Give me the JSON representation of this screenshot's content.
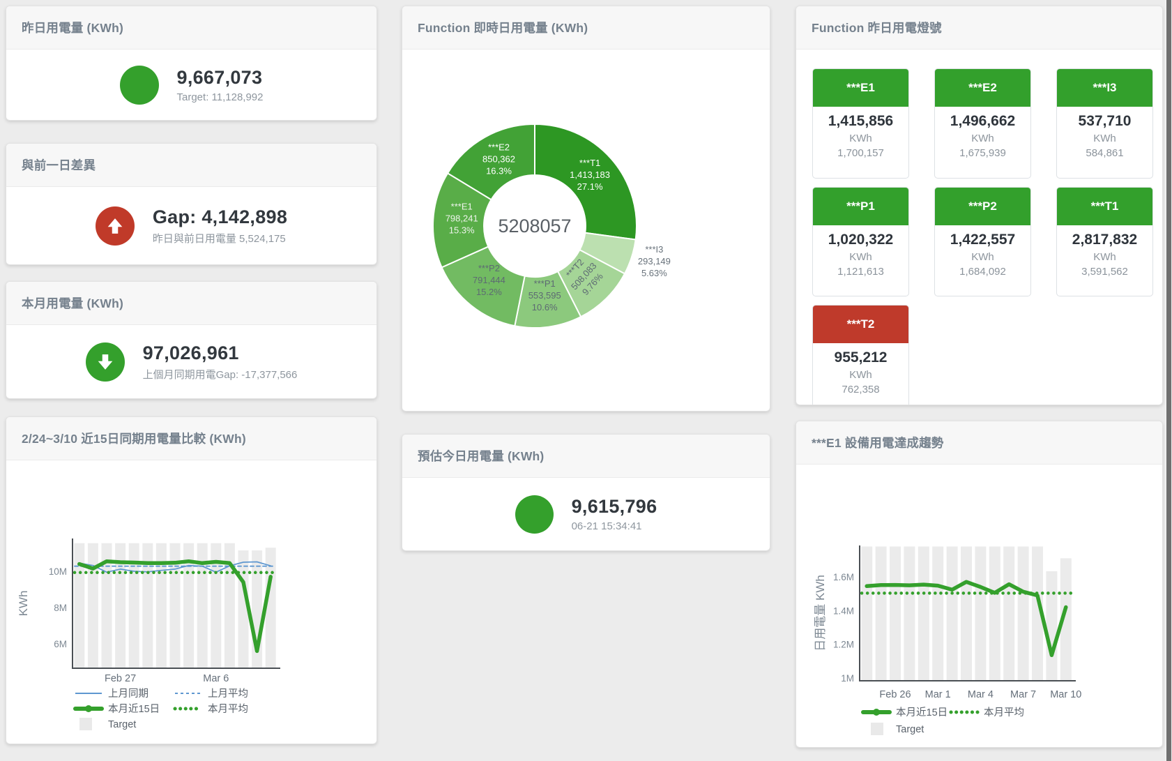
{
  "colors": {
    "green": "#34a02c",
    "red": "#c03a29",
    "blue": "#5e97d0",
    "tile_green": "#33a02c",
    "tile_red": "#bf3a2b",
    "target_bar": "#ebebeb"
  },
  "cards": {
    "yesterday": {
      "title": "昨日用電量 (KWh)",
      "value": "9,667,073",
      "caption": "Target: 11,128,992"
    },
    "gap_prev_day": {
      "title": "與前一日差異",
      "value": "Gap: 4,142,898",
      "caption": "昨日與前日用電量 5,524,175"
    },
    "month": {
      "title": "本月用電量 (KWh)",
      "value": "97,026,961",
      "caption": "上個月同期用電Gap: -17,377,566"
    },
    "compare15": {
      "title": "2/24~3/10 近15日同期用電量比較 (KWh)"
    },
    "realtime": {
      "title": "Function 即時日用電量 (KWh)"
    },
    "estimate": {
      "title": "預估今日用電量 (KWh)",
      "value": "9,615,796",
      "caption": "06-21 15:34:41"
    },
    "lights": {
      "title": "Function 昨日用電燈號"
    },
    "e1trend": {
      "title": "***E1 設備用電達成趨勢"
    }
  },
  "lights_tiles": [
    {
      "name": "***E1",
      "value": "1,415,856",
      "unit": "KWh",
      "target": "1,700,157",
      "status": "green"
    },
    {
      "name": "***E2",
      "value": "1,496,662",
      "unit": "KWh",
      "target": "1,675,939",
      "status": "green"
    },
    {
      "name": "***I3",
      "value": "537,710",
      "unit": "KWh",
      "target": "584,861",
      "status": "green"
    },
    {
      "name": "***P1",
      "value": "1,020,322",
      "unit": "KWh",
      "target": "1,121,613",
      "status": "green"
    },
    {
      "name": "***P2",
      "value": "1,422,557",
      "unit": "KWh",
      "target": "1,684,092",
      "status": "green"
    },
    {
      "name": "***T1",
      "value": "2,817,832",
      "unit": "KWh",
      "target": "3,591,562",
      "status": "green"
    },
    {
      "name": "***T2",
      "value": "955,212",
      "unit": "KWh",
      "target": "762,358",
      "status": "red"
    }
  ],
  "chart_data": [
    {
      "type": "pie",
      "title": "Function 即時日用電量 (KWh)",
      "total_label": "5208057",
      "unit": "KWh",
      "legend_position": "none",
      "slices": [
        {
          "name": "***T1",
          "value": 1413183,
          "display": "1,413,183",
          "pct": "27.1%",
          "color": "#2d9723",
          "label": "inside",
          "label_color": "#ffffff"
        },
        {
          "name": "***I3",
          "value": 293149,
          "display": "293,149",
          "pct": "5.63%",
          "color": "#bce0b0",
          "label": "outside",
          "label_color": "#68727b"
        },
        {
          "name": "***T2",
          "value": 508083,
          "display": "508,083",
          "pct": "9.76%",
          "color": "#a5d597",
          "label": "inside",
          "label_color": "#5d6a73",
          "rotate": -48
        },
        {
          "name": "***P1",
          "value": 553595,
          "display": "553,595",
          "pct": "10.6%",
          "color": "#8cc97d",
          "label": "inside",
          "label_color": "#5d6a73"
        },
        {
          "name": "***P2",
          "value": 791444,
          "display": "791,444",
          "pct": "15.2%",
          "color": "#72bb62",
          "label": "inside",
          "label_color": "#5d6a73"
        },
        {
          "name": "***E1",
          "value": 798241,
          "display": "798,241",
          "pct": "15.3%",
          "color": "#59ad48",
          "label": "inside",
          "label_color": "#eef4ec"
        },
        {
          "name": "***E2",
          "value": 850362,
          "display": "850,362",
          "pct": "16.3%",
          "color": "#42a236",
          "label": "inside",
          "label_color": "#ffffff"
        }
      ]
    },
    {
      "type": "line+bar",
      "title": "2/24~3/10 近15日同期用電量比較 (KWh)",
      "xlabel": "",
      "ylabel": "KWh",
      "ylim_millions": [
        4.65,
        11.8
      ],
      "grid": false,
      "legend_position": "bottom-left",
      "yticks": [
        {
          "value": 10,
          "label": "10M"
        },
        {
          "value": 8,
          "label": "8M"
        },
        {
          "value": 6,
          "label": "6M"
        }
      ],
      "xticks": [
        {
          "index": 3,
          "label": "Feb 27"
        },
        {
          "index": 10,
          "label": "Mar 6"
        }
      ],
      "target_bars": [
        11.55,
        11.55,
        11.55,
        11.55,
        11.55,
        11.55,
        11.55,
        11.55,
        11.55,
        11.55,
        11.55,
        11.55,
        11.15,
        11.15,
        11.3
      ],
      "series": [
        {
          "name": "上月同期",
          "kind": "line",
          "color": "#5e97d0",
          "values": [
            10.45,
            10.32,
            9.95,
            10.12,
            10.0,
            9.97,
            10.05,
            10.12,
            10.32,
            10.28,
            9.95,
            10.3,
            10.5,
            10.52,
            10.3
          ]
        },
        {
          "name": "上月平均",
          "kind": "dashed",
          "color": "#5e97d0",
          "value": 10.28
        },
        {
          "name": "本月近15日",
          "kind": "thick",
          "color": "#34a02c",
          "values": [
            10.4,
            10.15,
            10.55,
            10.5,
            10.48,
            10.45,
            10.45,
            10.47,
            10.55,
            10.45,
            10.52,
            10.45,
            9.4,
            5.6,
            9.7
          ]
        },
        {
          "name": "本月平均",
          "kind": "dotted",
          "color": "#34a02c",
          "value": 9.93
        }
      ],
      "legend": [
        {
          "label": "上月同期",
          "kind": "line",
          "color": "#5e97d0"
        },
        {
          "label": "上月平均",
          "kind": "dashed",
          "color": "#5e97d0"
        },
        {
          "label": "本月近15日",
          "kind": "thick",
          "color": "#34a02c"
        },
        {
          "label": "本月平均",
          "kind": "dotted",
          "color": "#34a02c"
        },
        {
          "label": "Target",
          "kind": "square",
          "color": "#e9e9e9"
        }
      ]
    },
    {
      "type": "line+bar",
      "title": "***E1 設備用電達成趨勢",
      "xlabel": "",
      "ylabel": "日用電量 KWh",
      "ylim_millions": [
        0.98,
        1.78
      ],
      "grid": false,
      "legend_position": "bottom-center",
      "yticks": [
        {
          "value": 1.6,
          "label": "1.6M"
        },
        {
          "value": 1.4,
          "label": "1.4M"
        },
        {
          "value": 1.2,
          "label": "1.2M"
        },
        {
          "value": 1.0,
          "label": "1M"
        }
      ],
      "xticks": [
        {
          "index": 2,
          "label": "Feb 26"
        },
        {
          "index": 5,
          "label": "Mar 1"
        },
        {
          "index": 8,
          "label": "Mar 4"
        },
        {
          "index": 11,
          "label": "Mar 7"
        },
        {
          "index": 14,
          "label": "Mar 10"
        }
      ],
      "target_bars": [
        1.78,
        1.78,
        1.78,
        1.78,
        1.78,
        1.78,
        1.78,
        1.78,
        1.78,
        1.78,
        1.78,
        1.78,
        1.78,
        1.633,
        1.71
      ],
      "series": [
        {
          "name": "本月近15日",
          "kind": "thick",
          "color": "#34a02c",
          "values": [
            1.545,
            1.551,
            1.552,
            1.55,
            1.554,
            1.548,
            1.524,
            1.57,
            1.54,
            1.505,
            1.556,
            1.512,
            1.49,
            1.135,
            1.42
          ]
        },
        {
          "name": "本月平均",
          "kind": "dotted",
          "color": "#34a02c",
          "value": 1.503
        }
      ],
      "legend": [
        {
          "label": "本月近15日",
          "kind": "thick",
          "color": "#34a02c"
        },
        {
          "label": "本月平均",
          "kind": "dotted",
          "color": "#34a02c"
        },
        {
          "label": "Target",
          "kind": "square",
          "color": "#e9e9e9"
        }
      ]
    }
  ]
}
